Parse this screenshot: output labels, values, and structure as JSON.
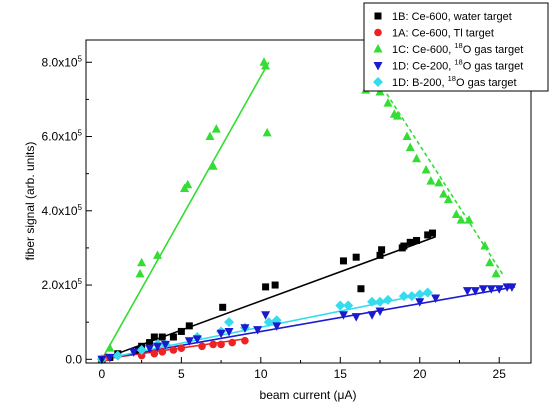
{
  "chart_data": {
    "type": "scatter",
    "xlabel": "beam current (μA)",
    "ylabel": "fiber signal (arb. units)",
    "xlim": [
      -1,
      27
    ],
    "ylim": [
      -0.1,
      8.6
    ],
    "xticks": [
      {
        "value": 0,
        "label": "0"
      },
      {
        "value": 5,
        "label": "5"
      },
      {
        "value": 10,
        "label": "10"
      },
      {
        "value": 15,
        "label": "15"
      },
      {
        "value": 20,
        "label": "20"
      },
      {
        "value": 25,
        "label": "25"
      }
    ],
    "yticks": [
      {
        "value": 0,
        "label": "0.0"
      },
      {
        "value": 2,
        "label": "2.0x10",
        "sup": "5"
      },
      {
        "value": 4,
        "label": "4.0x10",
        "sup": "5"
      },
      {
        "value": 6,
        "label": "6.0x10",
        "sup": "5"
      },
      {
        "value": 8,
        "label": "8.0x10",
        "sup": "5"
      }
    ],
    "grid": false,
    "legend_position": "top-right",
    "series": [
      {
        "name": "1B: Ce-600, water target",
        "legend_main": "1B: Ce-600, water target",
        "legend_sup": "",
        "legend_tail": "",
        "marker": "square",
        "color": "#000000",
        "points": [
          [
            0,
            0
          ],
          [
            0.5,
            0.05
          ],
          [
            1,
            0.15
          ],
          [
            2.3,
            0.25
          ],
          [
            2.5,
            0.35
          ],
          [
            3,
            0.45
          ],
          [
            3.3,
            0.6
          ],
          [
            3.8,
            0.6
          ],
          [
            4.5,
            0.6
          ],
          [
            5,
            0.75
          ],
          [
            5.5,
            0.9
          ],
          [
            7.6,
            1.4
          ],
          [
            10.3,
            1.95
          ],
          [
            10.9,
            2.0
          ],
          [
            15.2,
            2.65
          ],
          [
            16,
            2.75
          ],
          [
            16.3,
            1.9
          ],
          [
            17.5,
            2.8
          ],
          [
            17.6,
            2.95
          ],
          [
            18.9,
            3.0
          ],
          [
            19,
            3.05
          ],
          [
            19.4,
            3.15
          ],
          [
            19.8,
            3.2
          ],
          [
            20.5,
            3.35
          ],
          [
            20.8,
            3.4
          ]
        ],
        "fit": {
          "x": [
            0,
            21
          ],
          "y": [
            0,
            3.3
          ],
          "dashed": false
        }
      },
      {
        "name": "1A: Ce-600, Tl target",
        "legend_main": "1A: Ce-600, Tl target",
        "legend_sup": "",
        "legend_tail": "",
        "marker": "circle",
        "color": "#ee2222",
        "points": [
          [
            0,
            0
          ],
          [
            0.3,
            0.05
          ],
          [
            2.5,
            0.1
          ],
          [
            3.3,
            0.15
          ],
          [
            3.8,
            0.2
          ],
          [
            4.5,
            0.25
          ],
          [
            5,
            0.3
          ],
          [
            6.3,
            0.35
          ],
          [
            7,
            0.4
          ],
          [
            7.5,
            0.4
          ],
          [
            8.2,
            0.45
          ],
          [
            9,
            0.5
          ]
        ],
        "fit": {
          "x": [
            0,
            9
          ],
          "y": [
            0,
            0.55
          ],
          "dashed": false
        }
      },
      {
        "name": "1C: Ce-600, 18O gas target",
        "legend_main": "1C: Ce-600, ",
        "legend_sup": "18",
        "legend_tail": "O gas target",
        "marker": "triangle-up",
        "color": "#33dd33",
        "points": [
          [
            0,
            0
          ],
          [
            0.5,
            0.3
          ],
          [
            2.4,
            2.3
          ],
          [
            2.5,
            2.6
          ],
          [
            3.5,
            2.8
          ],
          [
            5.2,
            4.6
          ],
          [
            5.4,
            4.7
          ],
          [
            6.8,
            6.0
          ],
          [
            7,
            5.2
          ],
          [
            7.2,
            6.2
          ],
          [
            10.2,
            8.0
          ],
          [
            10.3,
            7.9
          ],
          [
            10.4,
            6.1
          ],
          [
            16.6,
            7.25
          ],
          [
            17.5,
            7.2
          ],
          [
            18,
            6.9
          ],
          [
            18.4,
            6.6
          ],
          [
            18.6,
            6.55
          ],
          [
            19.2,
            6.0
          ],
          [
            19.4,
            5.7
          ],
          [
            19.8,
            5.4
          ],
          [
            20.4,
            5.1
          ],
          [
            20.7,
            4.8
          ],
          [
            21.2,
            4.75
          ],
          [
            21.5,
            4.45
          ],
          [
            21.8,
            4.3
          ],
          [
            22.3,
            3.9
          ],
          [
            22.6,
            3.75
          ],
          [
            23.1,
            3.75
          ],
          [
            24.1,
            3.05
          ],
          [
            24.4,
            2.6
          ],
          [
            24.8,
            2.3
          ]
        ],
        "fits": [
          {
            "x": [
              0,
              10.5
            ],
            "y": [
              0,
              8.0
            ],
            "dashed": false
          },
          {
            "x": [
              16.5,
              25.2
            ],
            "y": [
              8.1,
              2.3
            ],
            "dashed": true
          }
        ]
      },
      {
        "name": "1D: Ce-200, 18O gas target",
        "legend_main": "1D: Ce-200, ",
        "legend_sup": "18",
        "legend_tail": "O gas target",
        "marker": "triangle-down",
        "color": "#1a1ad0",
        "points": [
          [
            0,
            0
          ],
          [
            0.5,
            0.05
          ],
          [
            2,
            0.2
          ],
          [
            3,
            0.3
          ],
          [
            3.5,
            0.35
          ],
          [
            4,
            0.4
          ],
          [
            5.5,
            0.5
          ],
          [
            6,
            0.55
          ],
          [
            7.5,
            0.7
          ],
          [
            8,
            0.75
          ],
          [
            9,
            0.85
          ],
          [
            9.8,
            0.8
          ],
          [
            10.3,
            1.2
          ],
          [
            11,
            0.9
          ],
          [
            15.2,
            1.2
          ],
          [
            16,
            1.15
          ],
          [
            17,
            1.2
          ],
          [
            17.5,
            1.3
          ],
          [
            20,
            1.55
          ],
          [
            21,
            1.65
          ],
          [
            23,
            1.85
          ],
          [
            23.5,
            1.85
          ],
          [
            24,
            1.9
          ],
          [
            24.5,
            1.9
          ],
          [
            25,
            1.9
          ],
          [
            25.5,
            1.95
          ],
          [
            25.8,
            1.95
          ]
        ],
        "fit": {
          "x": [
            0,
            26
          ],
          "y": [
            0,
            1.95
          ],
          "dashed": false
        }
      },
      {
        "name": "1D: B-200, 18O gas target",
        "legend_main": "1D: B-200, ",
        "legend_sup": "18",
        "legend_tail": "O gas target",
        "marker": "diamond",
        "color": "#33ddee",
        "points": [
          [
            0,
            0
          ],
          [
            1,
            0.1
          ],
          [
            2.5,
            0.25
          ],
          [
            3.5,
            0.4
          ],
          [
            4,
            0.4
          ],
          [
            6,
            0.6
          ],
          [
            7.5,
            0.75
          ],
          [
            8,
            1.0
          ],
          [
            9,
            0.85
          ],
          [
            10.5,
            1.0
          ],
          [
            11,
            1.05
          ],
          [
            15,
            1.45
          ],
          [
            15.5,
            1.45
          ],
          [
            17,
            1.55
          ],
          [
            17.5,
            1.55
          ],
          [
            18,
            1.6
          ],
          [
            19,
            1.7
          ],
          [
            19.5,
            1.7
          ],
          [
            20,
            1.75
          ],
          [
            20.5,
            1.8
          ]
        ],
        "fit": {
          "x": [
            0,
            20.8
          ],
          "y": [
            0,
            1.8
          ],
          "dashed": false
        }
      }
    ]
  }
}
